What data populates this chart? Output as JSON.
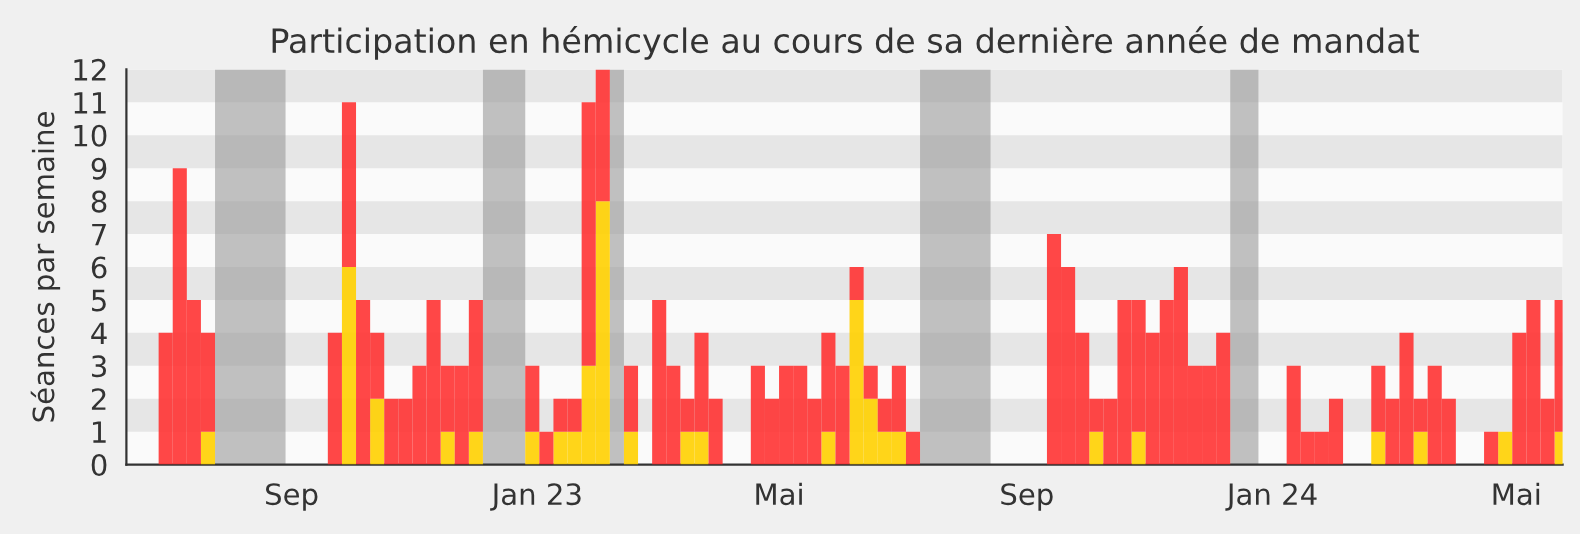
{
  "chart_data": {
    "type": "bar",
    "stacked": true,
    "title": "Participation en hémicycle au cours de sa dernière année de mandat",
    "ylabel": "Séances par semaine",
    "x": [
      "2022-06-27",
      "2022-07-04",
      "2022-07-11",
      "2022-07-18",
      "2022-07-25",
      "2022-08-01",
      "2022-08-08",
      "2022-08-15",
      "2022-08-22",
      "2022-08-29",
      "2022-09-05",
      "2022-09-12",
      "2022-09-19",
      "2022-09-26",
      "2022-10-03",
      "2022-10-10",
      "2022-10-17",
      "2022-10-24",
      "2022-10-31",
      "2022-11-07",
      "2022-11-14",
      "2022-11-21",
      "2022-11-28",
      "2022-12-05",
      "2022-12-12",
      "2022-12-19",
      "2022-12-26",
      "2023-01-02",
      "2023-01-09",
      "2023-01-16",
      "2023-01-23",
      "2023-01-30",
      "2023-02-06",
      "2023-02-13",
      "2023-02-20",
      "2023-02-27",
      "2023-03-06",
      "2023-03-13",
      "2023-03-20",
      "2023-03-27",
      "2023-04-03",
      "2023-04-10",
      "2023-04-17",
      "2023-04-24",
      "2023-05-01",
      "2023-05-08",
      "2023-05-15",
      "2023-05-22",
      "2023-05-29",
      "2023-06-05",
      "2023-06-12",
      "2023-06-19",
      "2023-06-26",
      "2023-07-03",
      "2023-07-10",
      "2023-07-17",
      "2023-07-24",
      "2023-07-31",
      "2023-08-07",
      "2023-08-14",
      "2023-08-21",
      "2023-08-28",
      "2023-09-04",
      "2023-09-11",
      "2023-09-18",
      "2023-09-25",
      "2023-10-02",
      "2023-10-09",
      "2023-10-16",
      "2023-10-23",
      "2023-10-30",
      "2023-11-06",
      "2023-11-13",
      "2023-11-20",
      "2023-11-27",
      "2023-12-04",
      "2023-12-11",
      "2023-12-18",
      "2023-12-25",
      "2024-01-01",
      "2024-01-08",
      "2024-01-15",
      "2024-01-22",
      "2024-01-29",
      "2024-02-05",
      "2024-02-12",
      "2024-02-19",
      "2024-02-26",
      "2024-03-04",
      "2024-03-11",
      "2024-03-18",
      "2024-03-25",
      "2024-04-01",
      "2024-04-08",
      "2024-04-15",
      "2024-04-22",
      "2024-04-29",
      "2024-05-06",
      "2024-05-13",
      "2024-05-20"
    ],
    "series": [
      {
        "color": "#ffd000",
        "values": [
          0,
          0,
          0,
          1,
          0,
          0,
          0,
          0,
          0,
          0,
          0,
          0,
          0,
          6,
          0,
          2,
          0,
          0,
          0,
          0,
          1,
          0,
          1,
          0,
          0,
          0,
          1,
          0,
          1,
          1,
          3,
          8,
          0,
          1,
          0,
          0,
          0,
          1,
          1,
          0,
          0,
          0,
          0,
          0,
          0,
          0,
          0,
          1,
          0,
          5,
          2,
          1,
          1,
          0,
          0,
          0,
          0,
          0,
          0,
          0,
          0,
          0,
          0,
          0,
          0,
          0,
          1,
          0,
          0,
          1,
          0,
          0,
          0,
          0,
          0,
          0,
          0,
          0,
          0,
          0,
          0,
          0,
          0,
          0,
          0,
          0,
          1,
          0,
          0,
          1,
          0,
          0,
          0,
          0,
          0,
          1,
          0,
          0,
          0,
          1
        ]
      },
      {
        "color": "#ff3333",
        "values": [
          4,
          9,
          5,
          3,
          0,
          0,
          0,
          0,
          0,
          0,
          0,
          0,
          4,
          5,
          5,
          2,
          2,
          2,
          3,
          5,
          2,
          3,
          4,
          0,
          0,
          0,
          2,
          1,
          1,
          1,
          8,
          4,
          0,
          2,
          0,
          5,
          3,
          1,
          3,
          2,
          0,
          0,
          3,
          2,
          3,
          3,
          2,
          3,
          3,
          1,
          1,
          1,
          2,
          1,
          0,
          0,
          0,
          0,
          0,
          0,
          0,
          0,
          0,
          7,
          6,
          4,
          1,
          2,
          5,
          4,
          4,
          5,
          6,
          3,
          3,
          4,
          0,
          0,
          0,
          0,
          3,
          1,
          1,
          2,
          0,
          0,
          2,
          2,
          4,
          1,
          3,
          2,
          0,
          0,
          1,
          0,
          4,
          5,
          2,
          4
        ]
      }
    ],
    "xlim": [
      "2022-06-11",
      "2024-05-24"
    ],
    "xticks": [
      {
        "value": "2022-09-01",
        "label": "Sep"
      },
      {
        "value": "2023-01-01",
        "label": "Jan 23"
      },
      {
        "value": "2023-05-01",
        "label": "Mai"
      },
      {
        "value": "2023-09-01",
        "label": "Sep"
      },
      {
        "value": "2024-01-01",
        "label": "Jan 24"
      },
      {
        "value": "2024-05-01",
        "label": "Mai"
      }
    ],
    "ylim": [
      0,
      12
    ],
    "yticks": [
      0,
      1,
      2,
      3,
      4,
      5,
      6,
      7,
      8,
      9,
      10,
      11,
      12
    ],
    "bands": [
      {
        "axis": "x",
        "from": "2022-07-25",
        "to": "2022-08-29",
        "color": "#999999"
      },
      {
        "axis": "x",
        "from": "2022-12-05",
        "to": "2022-12-26",
        "color": "#999999"
      },
      {
        "axis": "x",
        "from": "2023-02-06",
        "to": "2023-02-13",
        "color": "#999999"
      },
      {
        "axis": "x",
        "from": "2023-07-10",
        "to": "2023-08-14",
        "color": "#999999"
      },
      {
        "axis": "x",
        "from": "2023-12-11",
        "to": "2023-12-25",
        "color": "#999999"
      },
      {
        "axis": "y",
        "from": 1,
        "to": 2,
        "color": "#e6e6e6"
      },
      {
        "axis": "y",
        "from": 3,
        "to": 4,
        "color": "#e6e6e6"
      },
      {
        "axis": "y",
        "from": 5,
        "to": 6,
        "color": "#e6e6e6"
      },
      {
        "axis": "y",
        "from": 7,
        "to": 8,
        "color": "#e6e6e6"
      },
      {
        "axis": "y",
        "from": 9,
        "to": 10,
        "color": "#e6e6e6"
      },
      {
        "axis": "y",
        "from": 11,
        "to": 12,
        "color": "#e6e6e6"
      }
    ],
    "grid": false,
    "legend": false
  }
}
